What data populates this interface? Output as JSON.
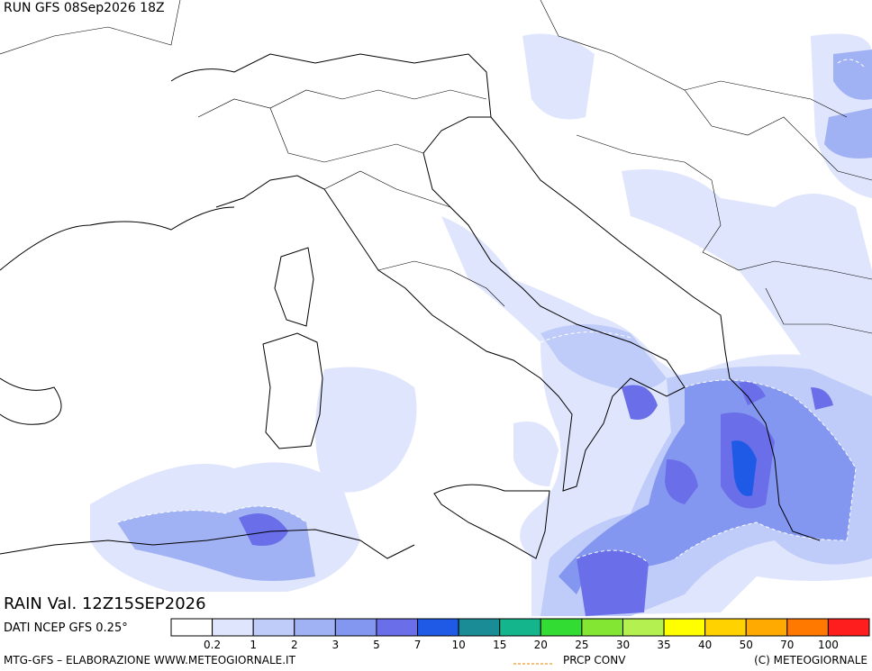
{
  "header": {
    "run": "RUN GFS 08Sep2026 18Z"
  },
  "map": {
    "valid_label": "RAIN Val. 12Z15SEP2026",
    "source": "DATI NCEP GFS 0.25°"
  },
  "legend": {
    "ticks": [
      0.2,
      1,
      2,
      3,
      5,
      7,
      10,
      15,
      20,
      25,
      30,
      35,
      40,
      50,
      70,
      100
    ],
    "colors": [
      "#ffffff",
      "#dfe5fc",
      "#bfcbf8",
      "#a0b2f4",
      "#8497f0",
      "#6a6ee8",
      "#1e5ae6",
      "#1a8c96",
      "#14b48c",
      "#32dc32",
      "#82e632",
      "#b4f050",
      "#ffff00",
      "#ffd200",
      "#ffaa00",
      "#ff7800",
      "#ff1e1e"
    ]
  },
  "footer": {
    "credit": "MTG-GFS – ELABORAZIONE WWW.METEOGIORNALE.IT",
    "conv": "PRCP CONV",
    "copyright": "(C) METEOGIORNALE"
  }
}
